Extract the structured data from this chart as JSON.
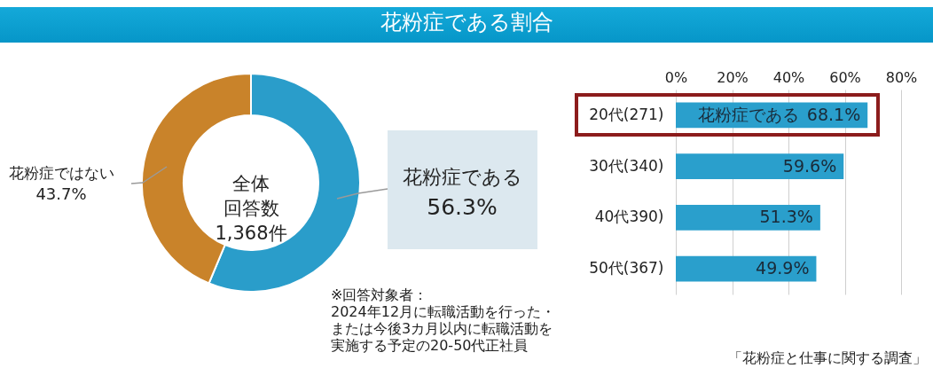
{
  "chart_data": [
    {
      "type": "donut",
      "title": "花粉症である割合",
      "categories": [
        "花粉症である",
        "花粉症ではない"
      ],
      "values": [
        56.3,
        43.7
      ],
      "colors": [
        "#2a9dca",
        "#c9832a"
      ],
      "value_labels": [
        "56.3%",
        "43.7%"
      ],
      "annotations": [
        "全体回答数1,368件",
        "※回答対象者：2024年12月に転職活動を行った・または今後3カ月以内に転職活動を実施する予定の20-50代正社員"
      ]
    },
    {
      "type": "bar",
      "orientation": "horizontal",
      "categories": [
        "20代(271)",
        "30代(340)",
        "40代390)",
        "50代(367)"
      ],
      "series": [
        {
          "name": "花粉症である",
          "color": "#2a9fcc",
          "values": [
            68.1,
            59.6,
            51.3,
            49.9
          ],
          "value_labels": [
            "68.1%",
            "59.6%",
            "51.3%",
            "49.9%"
          ]
        }
      ],
      "xlim": [
        0,
        80
      ],
      "xticks": [
        {
          "value": 0,
          "label": "0%"
        },
        {
          "value": 20,
          "label": "20%"
        },
        {
          "value": 40,
          "label": "40%"
        },
        {
          "value": 60,
          "label": "60%"
        },
        {
          "value": 80,
          "label": "80%"
        }
      ],
      "grid": "x",
      "annotations": [
        "「花粉症と仕事に関する調査」"
      ]
    }
  ]
}
